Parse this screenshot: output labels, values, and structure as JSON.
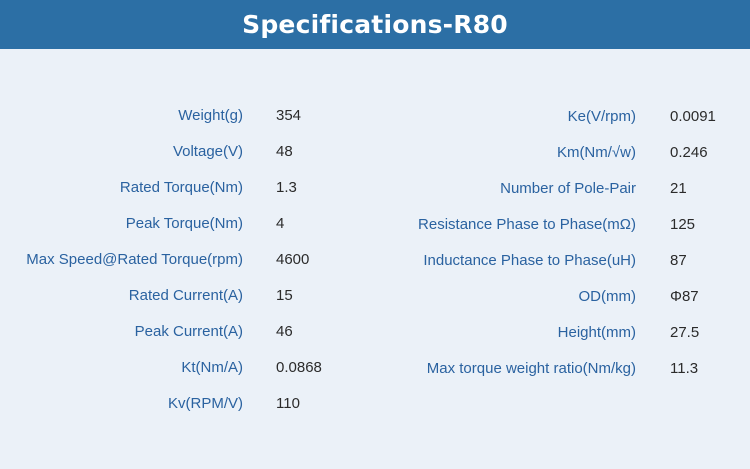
{
  "header": {
    "title": "Specifications-R80",
    "background_color": "#2c6fa5"
  },
  "left_specs": [
    {
      "label": "Weight(g)",
      "value": "354"
    },
    {
      "label": "Voltage(V)",
      "value": "48"
    },
    {
      "label": "Rated Torque(Nm)",
      "value": "1.3"
    },
    {
      "label": "Peak Torque(Nm)",
      "value": "4"
    },
    {
      "label": "Max Speed@Rated Torque(rpm)",
      "value": "4600"
    },
    {
      "label": "Rated Current(A)",
      "value": "15"
    },
    {
      "label": "Peak Current(A)",
      "value": "46"
    },
    {
      "label": "Kt(Nm/A)",
      "value": "0.0868"
    },
    {
      "label": "Kv(RPM/V)",
      "value": "110"
    }
  ],
  "right_specs": [
    {
      "label": "Ke(V/rpm)",
      "value": "0.0091"
    },
    {
      "label": "Km(Nm/√w)",
      "value": "0.246"
    },
    {
      "label": "Number of Pole-Pair",
      "value": "21"
    },
    {
      "label": "Resistance Phase to Phase(mΩ)",
      "value": "125"
    },
    {
      "label": "Inductance Phase to Phase(uH)",
      "value": "87"
    },
    {
      "label": "OD(mm)",
      "value": "Φ87"
    },
    {
      "label": "Height(mm)",
      "value": "27.5"
    },
    {
      "label": "Max torque weight ratio(Nm/kg)",
      "value": "11.3"
    }
  ],
  "colors": {
    "label": "#2a62a0",
    "value": "#2b2b2b",
    "page_background": "#ebf1f8"
  }
}
